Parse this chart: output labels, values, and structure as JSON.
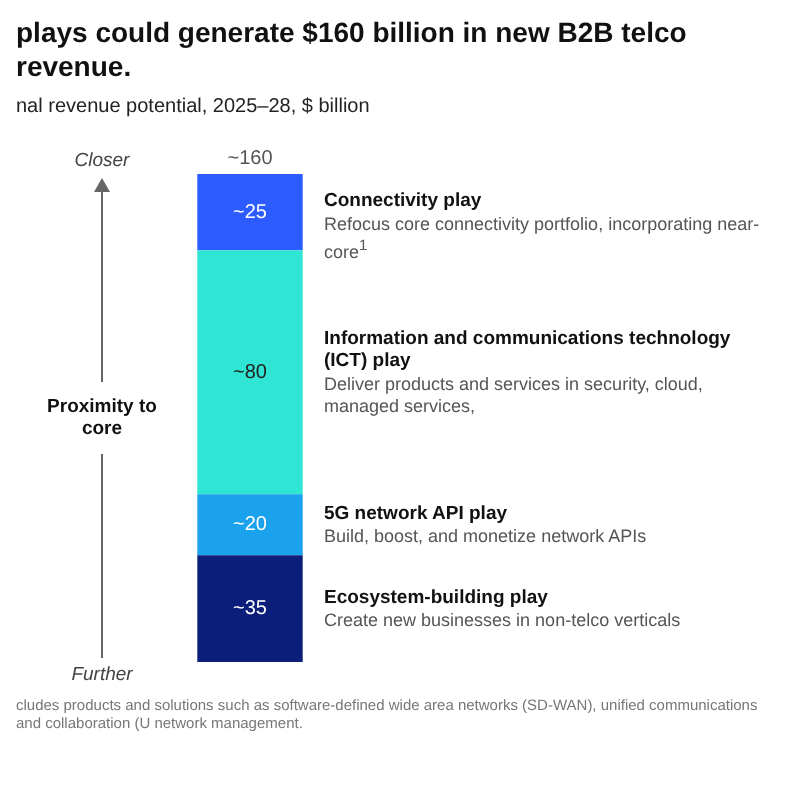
{
  "chart_data": {
    "type": "bar",
    "title": "plays could generate $160 billion in new B2B telco revenue.",
    "subtitle": "nal revenue potential, 2025–28, $ billion",
    "ylabel": "Proximity to core",
    "categories": [
      null
    ],
    "stacked": true,
    "legend": false,
    "tick_labels": false,
    "series": [
      {
        "name": "Ecosystem-building play",
        "color": "#0b1f7a",
        "values": [
          35
        ],
        "value_labels": [
          "~35"
        ]
      },
      {
        "name": "5G network API play",
        "color": "#1aa2ec",
        "values": [
          20
        ],
        "value_labels": [
          "~20"
        ]
      },
      {
        "name": "Information and communications technology (ICT) play",
        "color": "#2ee6d3",
        "values": [
          80
        ],
        "value_labels": [
          "~80"
        ]
      },
      {
        "name": "Connectivity play",
        "color": "#2c5cff",
        "values": [
          25
        ],
        "value_labels": [
          "~25"
        ]
      }
    ],
    "totals": [
      "~160"
    ],
    "annotations": [
      "Create new businesses in non-telco verticals",
      "Build, boost, and monetize network APIs",
      "Deliver products and services in security, cloud, managed services,",
      "Refocus core connectivity portfolio, incorporating near-core$^{1}$",
      "Closer",
      "Further",
      "cludes products and solutions such as software-defined wide area networks (SD-WAN), unified communications and collaboration (U network management."
    ]
  }
}
